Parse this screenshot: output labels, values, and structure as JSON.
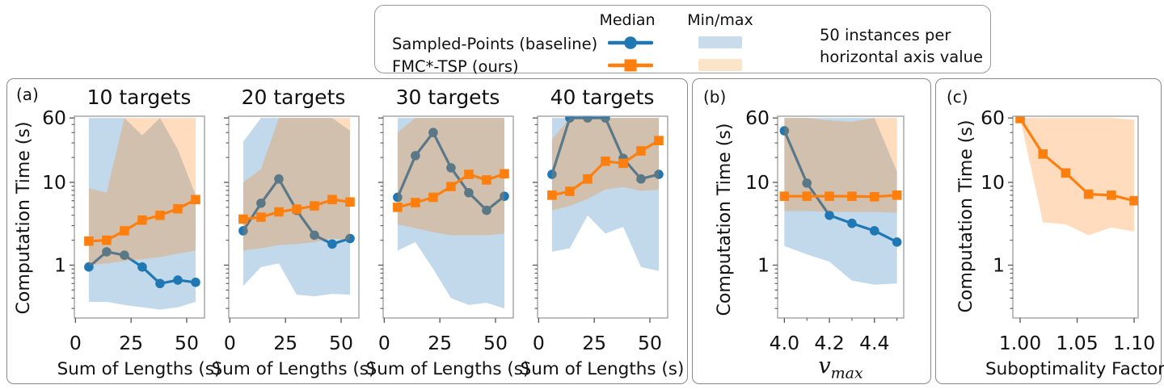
{
  "legend": {
    "header_median": "Median",
    "header_minmax": "Min/max",
    "entries": [
      {
        "label": "Sampled-Points (baseline)",
        "color": "#1f77b4",
        "band_color": "#c9dcec",
        "marker": "circle"
      },
      {
        "label": "FMC*-TSP (ours)",
        "color": "#ff7f0e",
        "band_color": "#fbe4c8",
        "marker": "square"
      }
    ],
    "note_line1": "50 instances per",
    "note_line2": "horizontal axis value"
  },
  "panels": [
    {
      "letter": "(a)"
    },
    {
      "letter": "(b)"
    },
    {
      "letter": "(c)"
    }
  ],
  "colors": {
    "blue": "#1f77b4",
    "orange": "#ff7f0e",
    "spine": "#9c9c9c",
    "tick": "#555555",
    "text": "#111111"
  },
  "chart_data": [
    {
      "panel": "a",
      "type": "line",
      "title": "10 targets",
      "xlabel": "Sum of Lengths (s)",
      "ylabel": "Computation Time (s)",
      "x": [
        6,
        14,
        22,
        30,
        38,
        46,
        54
      ],
      "xlim": [
        -0.5,
        58
      ],
      "xticks": [
        0,
        25,
        50
      ],
      "xtick_labels": [
        "0",
        "25",
        "50"
      ],
      "yscale": "log",
      "ylim": [
        0.23,
        63
      ],
      "yticks": [
        1,
        10,
        60
      ],
      "ytick_labels": [
        "1",
        "10",
        "60"
      ],
      "yticks_minor": [
        0.3,
        0.4,
        0.5,
        0.6,
        0.7,
        0.8,
        0.9,
        2,
        3,
        4,
        5,
        6,
        7,
        8,
        9,
        20,
        30,
        40,
        50
      ],
      "show_ytick_labels": true,
      "series": [
        {
          "key": "baseline",
          "name": "Sampled-Points (baseline)",
          "color": "#1f77b4",
          "marker": "circle",
          "band_opacity": 0.28,
          "median": [
            0.95,
            1.45,
            1.32,
            0.95,
            0.6,
            0.66,
            0.62
          ],
          "band_min": [
            0.36,
            0.36,
            0.33,
            0.31,
            0.29,
            0.31,
            0.36
          ],
          "band_max": [
            60,
            60,
            60,
            37,
            60,
            25,
            7
          ]
        },
        {
          "key": "fmc",
          "name": "FMC*-TSP (ours)",
          "color": "#ff7f0e",
          "marker": "square",
          "band_opacity": 0.27,
          "median": [
            1.95,
            2.0,
            2.6,
            3.5,
            4.0,
            4.8,
            6.2
          ],
          "band_min": [
            1.0,
            1.05,
            1.12,
            1.18,
            1.25,
            1.38,
            1.5
          ],
          "band_max": [
            8.5,
            7.5,
            60,
            60,
            60,
            60,
            60
          ]
        }
      ]
    },
    {
      "panel": "a",
      "type": "line",
      "title": "20 targets",
      "xlabel": "Sum of Lengths (s)",
      "ylabel": "Computation Time (s)",
      "x": [
        6,
        14,
        22,
        30,
        38,
        46,
        54
      ],
      "xlim": [
        -0.5,
        58
      ],
      "xticks": [
        0,
        25,
        50
      ],
      "xtick_labels": [
        "0",
        "25",
        "50"
      ],
      "yscale": "log",
      "ylim": [
        0.23,
        63
      ],
      "yticks": [
        1,
        10,
        60
      ],
      "ytick_labels": [
        "1",
        "10",
        "60"
      ],
      "yticks_minor": [
        0.3,
        0.4,
        0.5,
        0.6,
        0.7,
        0.8,
        0.9,
        2,
        3,
        4,
        5,
        6,
        7,
        8,
        9,
        20,
        30,
        40,
        50
      ],
      "show_ytick_labels": false,
      "series": [
        {
          "key": "baseline",
          "name": "Sampled-Points (baseline)",
          "color": "#1f77b4",
          "marker": "circle",
          "band_opacity": 0.28,
          "median": [
            2.6,
            5.6,
            11,
            4.6,
            2.3,
            1.8,
            2.1
          ],
          "band_min": [
            0.56,
            0.95,
            1.05,
            0.44,
            0.42,
            0.45,
            0.44
          ],
          "band_max": [
            31,
            60,
            60,
            60,
            60,
            60,
            42
          ]
        },
        {
          "key": "fmc",
          "name": "FMC*-TSP (ours)",
          "color": "#ff7f0e",
          "marker": "square",
          "band_opacity": 0.27,
          "median": [
            3.6,
            3.8,
            4.4,
            4.75,
            5.2,
            6.2,
            5.8
          ],
          "band_min": [
            1.5,
            1.6,
            1.75,
            1.8,
            1.9,
            2.1,
            2.0
          ],
          "band_max": [
            10,
            14.5,
            60,
            60,
            60,
            60,
            60
          ]
        }
      ]
    },
    {
      "panel": "a",
      "type": "line",
      "title": "30 targets",
      "xlabel": "Sum of Lengths (s)",
      "ylabel": "Computation Time (s)",
      "x": [
        6,
        14,
        22,
        30,
        38,
        46,
        54
      ],
      "xlim": [
        -0.5,
        58
      ],
      "xticks": [
        0,
        25,
        50
      ],
      "xtick_labels": [
        "0",
        "25",
        "50"
      ],
      "yscale": "log",
      "ylim": [
        0.23,
        63
      ],
      "yticks": [
        1,
        10,
        60
      ],
      "ytick_labels": [
        "1",
        "10",
        "60"
      ],
      "yticks_minor": [
        0.3,
        0.4,
        0.5,
        0.6,
        0.7,
        0.8,
        0.9,
        2,
        3,
        4,
        5,
        6,
        7,
        8,
        9,
        20,
        30,
        40,
        50
      ],
      "show_ytick_labels": false,
      "series": [
        {
          "key": "baseline",
          "name": "Sampled-Points (baseline)",
          "color": "#1f77b4",
          "marker": "circle",
          "band_opacity": 0.28,
          "median": [
            6.6,
            21,
            40,
            15,
            7.5,
            4.6,
            6.8
          ],
          "band_min": [
            1.5,
            1.9,
            0.9,
            0.4,
            0.33,
            0.35,
            0.3
          ],
          "band_max": [
            60,
            60,
            60,
            60,
            60,
            60,
            60
          ]
        },
        {
          "key": "fmc",
          "name": "FMC*-TSP (ours)",
          "color": "#ff7f0e",
          "marker": "square",
          "band_opacity": 0.27,
          "median": [
            5.0,
            5.7,
            6.6,
            8.9,
            12.5,
            10.7,
            12.7
          ],
          "band_min": [
            3.1,
            2.8,
            2.5,
            2.3,
            2.3,
            2.3,
            2.4
          ],
          "band_max": [
            40,
            60,
            60,
            60,
            60,
            60,
            60
          ]
        }
      ]
    },
    {
      "panel": "a",
      "type": "line",
      "title": "40 targets",
      "xlabel": "Sum of Lengths (s)",
      "ylabel": "Computation Time (s)",
      "x": [
        6,
        14,
        22,
        30,
        38,
        46,
        54
      ],
      "xlim": [
        -0.5,
        58
      ],
      "xticks": [
        0,
        25,
        50
      ],
      "xtick_labels": [
        "0",
        "25",
        "50"
      ],
      "yscale": "log",
      "ylim": [
        0.23,
        63
      ],
      "yticks": [
        1,
        10,
        60
      ],
      "ytick_labels": [
        "1",
        "10",
        "60"
      ],
      "yticks_minor": [
        0.3,
        0.4,
        0.5,
        0.6,
        0.7,
        0.8,
        0.9,
        2,
        3,
        4,
        5,
        6,
        7,
        8,
        9,
        20,
        30,
        40,
        50
      ],
      "show_ytick_labels": false,
      "series": [
        {
          "key": "baseline",
          "name": "Sampled-Points (baseline)",
          "color": "#1f77b4",
          "marker": "circle",
          "band_opacity": 0.28,
          "median": [
            12.5,
            60,
            60,
            60,
            19.5,
            11,
            12.5
          ],
          "band_min": [
            1.45,
            1.6,
            4.0,
            2.4,
            2.9,
            0.95,
            0.85
          ],
          "band_max": [
            60,
            60,
            60,
            60,
            60,
            60,
            60
          ]
        },
        {
          "key": "fmc",
          "name": "FMC*-TSP (ours)",
          "color": "#ff7f0e",
          "marker": "square",
          "band_opacity": 0.27,
          "median": [
            7.0,
            7.8,
            11,
            18,
            17,
            24,
            32
          ],
          "band_min": [
            4.6,
            5.2,
            6.3,
            8.2,
            8.8,
            7.9,
            8.2
          ],
          "band_max": [
            33,
            60,
            60,
            60,
            60,
            60,
            60
          ]
        }
      ]
    },
    {
      "panel": "b",
      "type": "line",
      "title": "",
      "xlabel": "v_max",
      "xlabel_base": "v",
      "xlabel_sub": "max",
      "ylabel": "Computation Time (s)",
      "x": [
        4.0,
        4.1,
        4.2,
        4.3,
        4.4,
        4.5
      ],
      "xlim": [
        3.97,
        4.53
      ],
      "xticks": [
        4.0,
        4.2,
        4.4
      ],
      "xtick_labels": [
        "4.0",
        "4.2",
        "4.4"
      ],
      "xticks_minor": [
        4.1,
        4.3,
        4.5
      ],
      "yscale": "log",
      "ylim": [
        0.23,
        63
      ],
      "yticks": [
        1,
        10,
        60
      ],
      "ytick_labels": [
        "1",
        "10",
        "60"
      ],
      "yticks_minor": [
        0.3,
        0.4,
        0.5,
        0.6,
        0.7,
        0.8,
        0.9,
        2,
        3,
        4,
        5,
        6,
        7,
        8,
        9,
        20,
        30,
        40,
        50
      ],
      "show_ytick_labels": true,
      "series": [
        {
          "key": "baseline",
          "name": "Sampled-Points (baseline)",
          "color": "#1f77b4",
          "marker": "circle",
          "band_opacity": 0.28,
          "median": [
            42,
            9.8,
            4.0,
            3.2,
            2.6,
            1.9
          ],
          "band_min": [
            1.7,
            1.35,
            1.1,
            0.65,
            0.58,
            0.6
          ],
          "band_max": [
            60,
            60,
            60,
            60,
            60,
            13.5
          ]
        },
        {
          "key": "fmc",
          "name": "FMC*-TSP (ours)",
          "color": "#ff7f0e",
          "marker": "square",
          "band_opacity": 0.27,
          "median": [
            6.8,
            6.8,
            6.8,
            6.8,
            6.7,
            7.0
          ],
          "band_min": [
            4.5,
            4.5,
            4.4,
            4.4,
            4.4,
            4.3
          ],
          "band_max": [
            60,
            60,
            56,
            54,
            60,
            60
          ]
        }
      ]
    },
    {
      "panel": "c",
      "type": "line",
      "title": "",
      "xlabel": "Suboptimality Factor",
      "ylabel": "Computation Time (s)",
      "x": [
        1.0,
        1.02,
        1.04,
        1.06,
        1.08,
        1.1
      ],
      "xlim": [
        0.9936,
        1.1035
      ],
      "xticks": [
        1.0,
        1.05,
        1.1
      ],
      "xtick_labels": [
        "1.00",
        "1.05",
        "1.10"
      ],
      "yscale": "log",
      "ylim": [
        0.23,
        63
      ],
      "yticks": [
        1,
        10,
        60
      ],
      "ytick_labels": [
        "1",
        "10",
        "60"
      ],
      "yticks_minor": [
        0.3,
        0.4,
        0.5,
        0.6,
        0.7,
        0.8,
        0.9,
        2,
        3,
        4,
        5,
        6,
        7,
        8,
        9,
        20,
        30,
        40,
        50
      ],
      "show_ytick_labels": true,
      "series": [
        {
          "key": "fmc",
          "name": "FMC*-TSP (ours)",
          "color": "#ff7f0e",
          "marker": "square",
          "band_opacity": 0.27,
          "median": [
            59,
            22,
            13,
            7.2,
            7.0,
            6.0
          ],
          "band_min": [
            59,
            3.3,
            3.1,
            2.3,
            2.85,
            2.55
          ],
          "band_max": [
            60,
            60,
            60,
            60,
            60,
            57
          ]
        }
      ]
    }
  ]
}
